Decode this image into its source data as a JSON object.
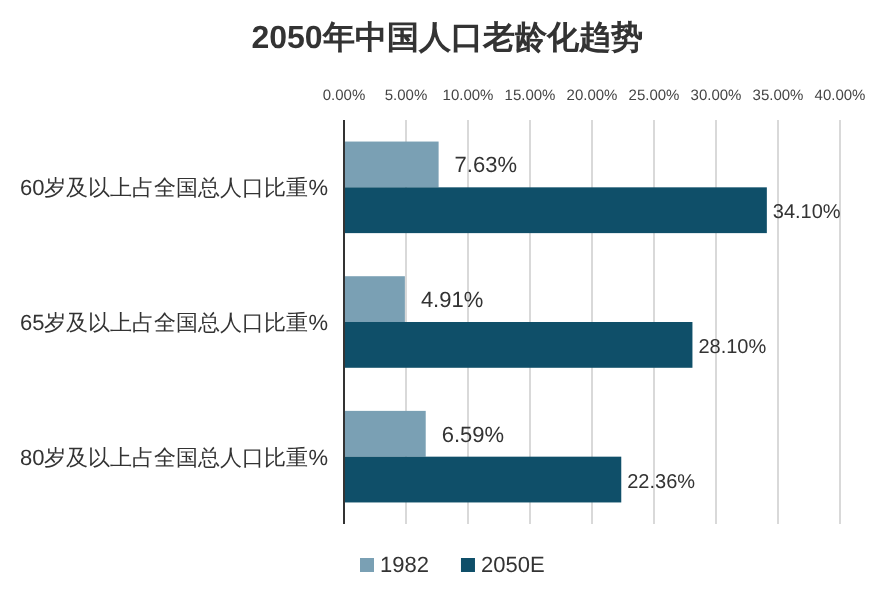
{
  "chart_data": {
    "type": "bar",
    "orientation": "horizontal",
    "title": "2050年中国人口老龄化趋势",
    "categories": [
      "60岁及以上占全国总人口比重%",
      "65岁及以上占全国总人口比重%",
      "80岁及以上占全国总人口比重%"
    ],
    "series": [
      {
        "name": "1982",
        "color": "#7aa0b4",
        "values": [
          7.63,
          4.91,
          6.59
        ],
        "value_labels": [
          "7.63%",
          "4.91%",
          "6.59%"
        ]
      },
      {
        "name": "2050E",
        "color": "#0f4f69",
        "values": [
          34.1,
          28.1,
          22.36
        ],
        "value_labels": [
          "34.10%",
          "28.10%",
          "22.36%"
        ]
      }
    ],
    "xlim": [
      0,
      40
    ],
    "xticks": [
      {
        "value": 0,
        "label": "0.00%"
      },
      {
        "value": 5,
        "label": "5.00%"
      },
      {
        "value": 10,
        "label": "10.00%"
      },
      {
        "value": 15,
        "label": "15.00%"
      },
      {
        "value": 20,
        "label": "20.00%"
      },
      {
        "value": 25,
        "label": "25.00%"
      },
      {
        "value": 30,
        "label": "30.00%"
      },
      {
        "value": 35,
        "label": "35.00%"
      },
      {
        "value": 40,
        "label": "40.00%"
      }
    ],
    "grid": "x",
    "legend": "bottom left"
  }
}
